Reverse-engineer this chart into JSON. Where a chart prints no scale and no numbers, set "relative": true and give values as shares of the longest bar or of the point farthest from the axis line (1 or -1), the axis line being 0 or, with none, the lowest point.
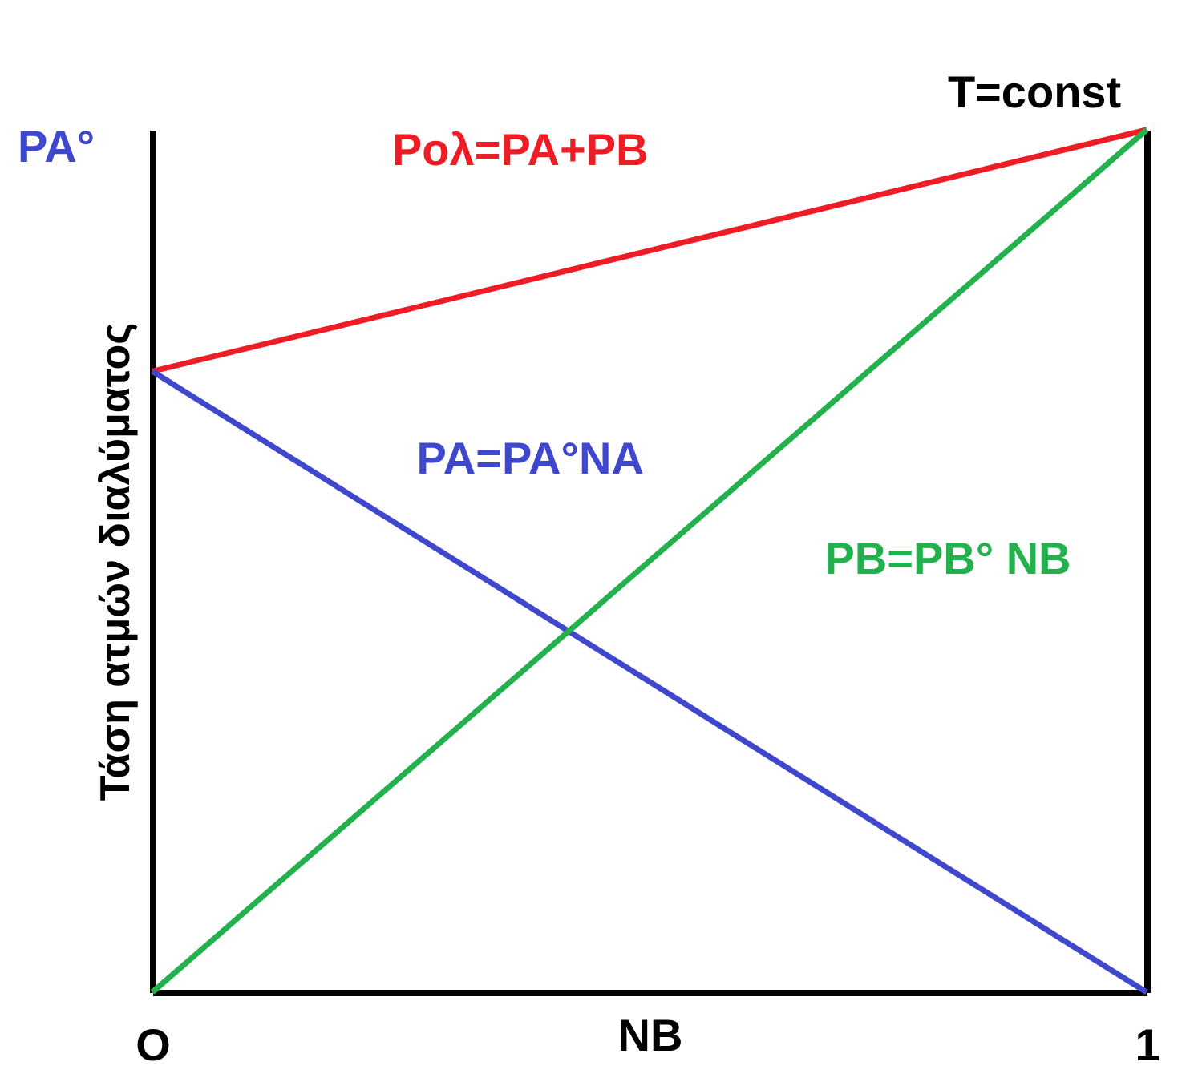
{
  "chart_data": {
    "type": "line",
    "relative": true,
    "xlabel": "NB",
    "ylabel": "Τάση ατμών διαλύματος",
    "categories": [
      "O",
      "1"
    ],
    "series": [
      {
        "name": "Pολ=PA+PB",
        "color": "#ee1c24",
        "values": [
          0.72,
          1
        ]
      },
      {
        "name": "PA=PA°NA",
        "color": "#3f48cc",
        "values": [
          0.72,
          0
        ]
      },
      {
        "name": "PB=PB° NB",
        "color": "#22b14c",
        "values": [
          0,
          1
        ]
      }
    ],
    "annotations": [
      "PA°",
      "T=const"
    ],
    "grid": "x",
    "legend": false,
    "marker": "none",
    "line_style": "solid"
  }
}
